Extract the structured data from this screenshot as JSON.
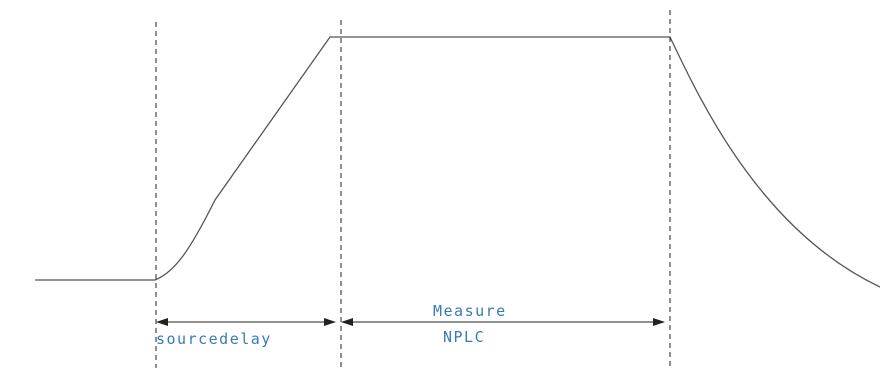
{
  "labels": {
    "sourcedelay": "sourcedelay",
    "measure": "Measure",
    "nplc": "NPLC"
  },
  "colors": {
    "waveform": "#555555",
    "dashed_line": "#222222",
    "arrow": "#222222",
    "label": "#3a7ab8"
  }
}
